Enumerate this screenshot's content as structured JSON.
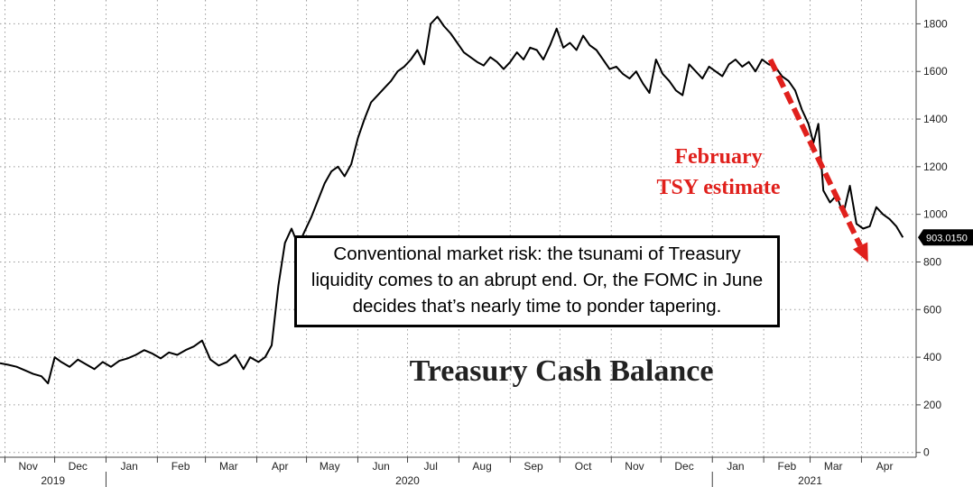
{
  "chart_data": {
    "type": "line",
    "title": "Treasury Cash Balance",
    "x_tick_labels": [
      "Nov",
      "Dec",
      "Jan",
      "Feb",
      "Mar",
      "Apr",
      "May",
      "Jun",
      "Jul",
      "Aug",
      "Sep",
      "Oct",
      "Nov",
      "Dec",
      "Jan",
      "Feb",
      "Mar",
      "Apr"
    ],
    "year_labels": [
      "2019",
      "2020",
      "2021"
    ],
    "y_ticks": [
      0,
      200,
      400,
      600,
      800,
      1000,
      1200,
      1400,
      1600,
      1800
    ],
    "ylim": [
      -20,
      1900
    ],
    "xlim": [
      "2019-10-29",
      "2021-05-04"
    ],
    "grid": true,
    "y_axis_position": "right",
    "last_value_label": "903.0150",
    "series": [
      {
        "values": [
          [
            "2019-10-29",
            375
          ],
          [
            "2019-11-03",
            368
          ],
          [
            "2019-11-08",
            360
          ],
          [
            "2019-11-13",
            345
          ],
          [
            "2019-11-18",
            330
          ],
          [
            "2019-11-23",
            320
          ],
          [
            "2019-11-27",
            290
          ],
          [
            "2019-12-01",
            400
          ],
          [
            "2019-12-05",
            380
          ],
          [
            "2019-12-10",
            360
          ],
          [
            "2019-12-15",
            390
          ],
          [
            "2019-12-20",
            370
          ],
          [
            "2019-12-25",
            350
          ],
          [
            "2019-12-30",
            380
          ],
          [
            "2020-01-04",
            360
          ],
          [
            "2020-01-09",
            385
          ],
          [
            "2020-01-14",
            395
          ],
          [
            "2020-01-19",
            410
          ],
          [
            "2020-01-24",
            430
          ],
          [
            "2020-01-29",
            415
          ],
          [
            "2020-02-03",
            395
          ],
          [
            "2020-02-08",
            420
          ],
          [
            "2020-02-13",
            410
          ],
          [
            "2020-02-18",
            430
          ],
          [
            "2020-02-23",
            445
          ],
          [
            "2020-02-28",
            470
          ],
          [
            "2020-03-04",
            390
          ],
          [
            "2020-03-09",
            365
          ],
          [
            "2020-03-14",
            380
          ],
          [
            "2020-03-19",
            410
          ],
          [
            "2020-03-24",
            350
          ],
          [
            "2020-03-28",
            400
          ],
          [
            "2020-04-02",
            380
          ],
          [
            "2020-04-06",
            400
          ],
          [
            "2020-04-10",
            450
          ],
          [
            "2020-04-14",
            700
          ],
          [
            "2020-04-18",
            880
          ],
          [
            "2020-04-22",
            940
          ],
          [
            "2020-04-26",
            870
          ],
          [
            "2020-04-30",
            930
          ],
          [
            "2020-05-04",
            990
          ],
          [
            "2020-05-08",
            1060
          ],
          [
            "2020-05-12",
            1130
          ],
          [
            "2020-05-16",
            1180
          ],
          [
            "2020-05-20",
            1200
          ],
          [
            "2020-05-24",
            1160
          ],
          [
            "2020-05-28",
            1210
          ],
          [
            "2020-06-01",
            1320
          ],
          [
            "2020-06-05",
            1400
          ],
          [
            "2020-06-09",
            1470
          ],
          [
            "2020-06-13",
            1500
          ],
          [
            "2020-06-17",
            1530
          ],
          [
            "2020-06-21",
            1560
          ],
          [
            "2020-06-25",
            1600
          ],
          [
            "2020-06-29",
            1620
          ],
          [
            "2020-07-03",
            1650
          ],
          [
            "2020-07-07",
            1690
          ],
          [
            "2020-07-11",
            1630
          ],
          [
            "2020-07-15",
            1800
          ],
          [
            "2020-07-19",
            1830
          ],
          [
            "2020-07-23",
            1790
          ],
          [
            "2020-07-27",
            1760
          ],
          [
            "2020-07-31",
            1720
          ],
          [
            "2020-08-04",
            1680
          ],
          [
            "2020-08-08",
            1660
          ],
          [
            "2020-08-12",
            1640
          ],
          [
            "2020-08-16",
            1625
          ],
          [
            "2020-08-20",
            1660
          ],
          [
            "2020-08-24",
            1640
          ],
          [
            "2020-08-28",
            1610
          ],
          [
            "2020-09-01",
            1640
          ],
          [
            "2020-09-05",
            1680
          ],
          [
            "2020-09-09",
            1650
          ],
          [
            "2020-09-13",
            1700
          ],
          [
            "2020-09-17",
            1690
          ],
          [
            "2020-09-21",
            1650
          ],
          [
            "2020-09-25",
            1710
          ],
          [
            "2020-09-29",
            1780
          ],
          [
            "2020-10-03",
            1700
          ],
          [
            "2020-10-07",
            1720
          ],
          [
            "2020-10-11",
            1690
          ],
          [
            "2020-10-15",
            1750
          ],
          [
            "2020-10-19",
            1710
          ],
          [
            "2020-10-23",
            1690
          ],
          [
            "2020-10-27",
            1650
          ],
          [
            "2020-10-31",
            1610
          ],
          [
            "2020-11-04",
            1620
          ],
          [
            "2020-11-08",
            1590
          ],
          [
            "2020-11-12",
            1570
          ],
          [
            "2020-11-16",
            1600
          ],
          [
            "2020-11-20",
            1550
          ],
          [
            "2020-11-24",
            1510
          ],
          [
            "2020-11-28",
            1650
          ],
          [
            "2020-12-02",
            1590
          ],
          [
            "2020-12-06",
            1560
          ],
          [
            "2020-12-10",
            1520
          ],
          [
            "2020-12-14",
            1500
          ],
          [
            "2020-12-18",
            1630
          ],
          [
            "2020-12-22",
            1600
          ],
          [
            "2020-12-26",
            1570
          ],
          [
            "2020-12-30",
            1620
          ],
          [
            "2021-01-03",
            1600
          ],
          [
            "2021-01-07",
            1580
          ],
          [
            "2021-01-11",
            1630
          ],
          [
            "2021-01-15",
            1650
          ],
          [
            "2021-01-19",
            1620
          ],
          [
            "2021-01-23",
            1640
          ],
          [
            "2021-01-27",
            1600
          ],
          [
            "2021-01-31",
            1650
          ],
          [
            "2021-02-04",
            1630
          ],
          [
            "2021-02-08",
            1620
          ],
          [
            "2021-02-12",
            1580
          ],
          [
            "2021-02-16",
            1560
          ],
          [
            "2021-02-20",
            1520
          ],
          [
            "2021-02-24",
            1440
          ],
          [
            "2021-02-28",
            1380
          ],
          [
            "2021-03-03",
            1300
          ],
          [
            "2021-03-06",
            1380
          ],
          [
            "2021-03-09",
            1100
          ],
          [
            "2021-03-13",
            1050
          ],
          [
            "2021-03-17",
            1080
          ],
          [
            "2021-03-21",
            1000
          ],
          [
            "2021-03-25",
            1120
          ],
          [
            "2021-03-29",
            960
          ],
          [
            "2021-04-02",
            940
          ],
          [
            "2021-04-06",
            950
          ],
          [
            "2021-04-10",
            1030
          ],
          [
            "2021-04-14",
            1000
          ],
          [
            "2021-04-18",
            980
          ],
          [
            "2021-04-22",
            950
          ],
          [
            "2021-04-26",
            903
          ]
        ]
      }
    ],
    "annotations": {
      "trend_label_line1": "February",
      "trend_label_line2": "TSY estimate",
      "trend_arrow_from": [
        "2021-02-05",
        1650
      ],
      "trend_arrow_to": [
        "2021-04-05",
        800
      ],
      "callout": "Conventional market risk: the tsunami of Treasury liquidity comes to an abrupt end. Or, the FOMC in June decides that’s nearly time to ponder tapering."
    },
    "colors": {
      "line": "#000000",
      "arrow": "#e0201c",
      "grid": "#9a9a9a",
      "last_value_bg": "#000000"
    }
  }
}
